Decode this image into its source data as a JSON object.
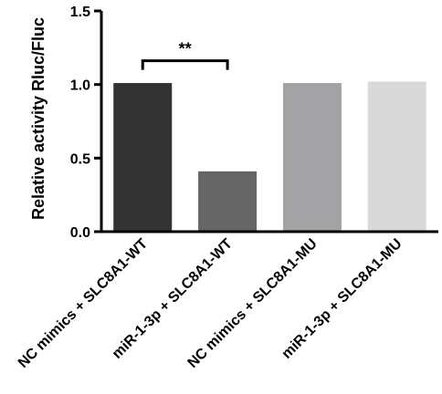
{
  "chart_data": {
    "type": "bar",
    "categories": [
      "NC mimics + SLC8A1-WT",
      "miR-1-3p + SLC8A1-WT",
      "NC mimics + SLC8A1-MU",
      "miR-1-3p + SLC8A1-MU"
    ],
    "values": [
      1.01,
      0.41,
      1.01,
      1.02
    ],
    "bar_colors": [
      "#333333",
      "#666666",
      "#a3a3a5",
      "#d9d9d9"
    ],
    "ylabel": "Relative activity Rluc/Fluc",
    "xlabel": "",
    "ylim": [
      0,
      1.5
    ],
    "yticks": [
      0.0,
      0.5,
      1.0,
      1.5
    ],
    "ytick_labels": [
      "0.0",
      "0.5",
      "1.0",
      "1.5"
    ],
    "grid": false,
    "legend": "none",
    "annotations": [
      {
        "type": "significance_bracket",
        "from_category": 0,
        "to_category": 1,
        "y": 1.18,
        "text": "**"
      }
    ]
  }
}
